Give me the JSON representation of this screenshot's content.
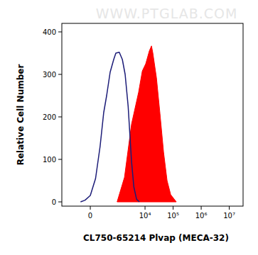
{
  "chart_data": {
    "type": "line",
    "annotations": [
      "WWW.PTGLAB.COM"
    ],
    "x_label": "CL750-65214 Plvap (MECA-32)",
    "y_label": "Relative Cell Number",
    "xlim": [
      -1150,
      31000000
    ],
    "ylim": [
      -10,
      420
    ],
    "xticks": [
      0,
      {
        "value": 10000,
        "label": "10⁴"
      },
      {
        "value": 100000,
        "label": "10⁵"
      },
      {
        "value": 1000000,
        "label": "10⁶"
      },
      {
        "value": 10000000,
        "label": "10⁷"
      }
    ],
    "yticks": [
      0,
      100,
      200,
      300,
      400
    ],
    "grid": false,
    "series": [
      {
        "type": "line",
        "color": "#1c1c78",
        "x": [
          -200,
          -100,
          0,
          100,
          200,
          300,
          400,
          550,
          750,
          900,
          1200,
          1550,
          1950,
          2500,
          3300,
          4000,
          5000,
          6300
        ],
        "values": [
          0,
          4,
          15,
          55,
          130,
          210,
          250,
          305,
          335,
          350,
          352,
          335,
          300,
          225,
          95,
          35,
          6,
          0
        ]
      },
      {
        "type": "area",
        "color": "#ff0000",
        "x": [
          1000,
          1850,
          3300,
          5900,
          8000,
          10600,
          14200,
          17000,
          19000,
          25500,
          34000,
          45700,
          61000,
          82000,
          130000
        ],
        "values": [
          0,
          58,
          183,
          258,
          308,
          325,
          355,
          367,
          350,
          292,
          208,
          117,
          50,
          17,
          0
        ]
      }
    ]
  }
}
